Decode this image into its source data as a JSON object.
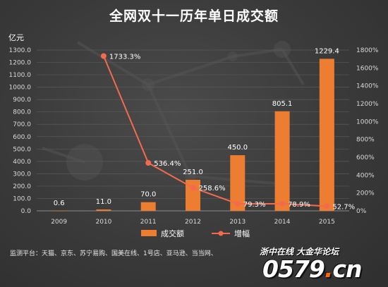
{
  "chart_data": {
    "type": "bar+line",
    "title": "全网双十一历年单日成交额",
    "ylabel_left": "亿元",
    "categories": [
      "2009",
      "2010",
      "2011",
      "2012",
      "2013",
      "2014",
      "2015"
    ],
    "y_left": {
      "min": 0,
      "max": 1300,
      "step": 100,
      "tick_format": "0.0"
    },
    "y_right": {
      "min": 0,
      "max": 1800,
      "step": 200,
      "tick_format": "0%"
    },
    "grid": true,
    "legend_position": "bottom",
    "series": [
      {
        "name": "成交额",
        "type": "bar",
        "axis": "left",
        "color": "#ed7d31",
        "values": [
          0.6,
          11.0,
          70.0,
          251.0,
          450.0,
          805.1,
          1229.4
        ],
        "labels": [
          "0.6",
          "11.0",
          "70.0",
          "251.0",
          "450.0",
          "805.1",
          "1229.4"
        ]
      },
      {
        "name": "增幅",
        "type": "line",
        "axis": "right",
        "color": "#f26b4f",
        "values": [
          null,
          1733.3,
          536.4,
          258.6,
          79.3,
          78.9,
          52.7
        ],
        "labels": [
          "",
          "1733.3%",
          "536.4%",
          "258.6%",
          "79.3%",
          "78.9%",
          "52.7%"
        ]
      }
    ]
  },
  "footer": {
    "source": "监测平台：天猫、京东、苏宁易购、国美在线、1号店、亚马逊、当当网、",
    "watermark_cn": "浙中在线 大金华论坛",
    "watermark_logo_a": "0579",
    "watermark_logo_dot": ".",
    "watermark_logo_b": "cn"
  }
}
